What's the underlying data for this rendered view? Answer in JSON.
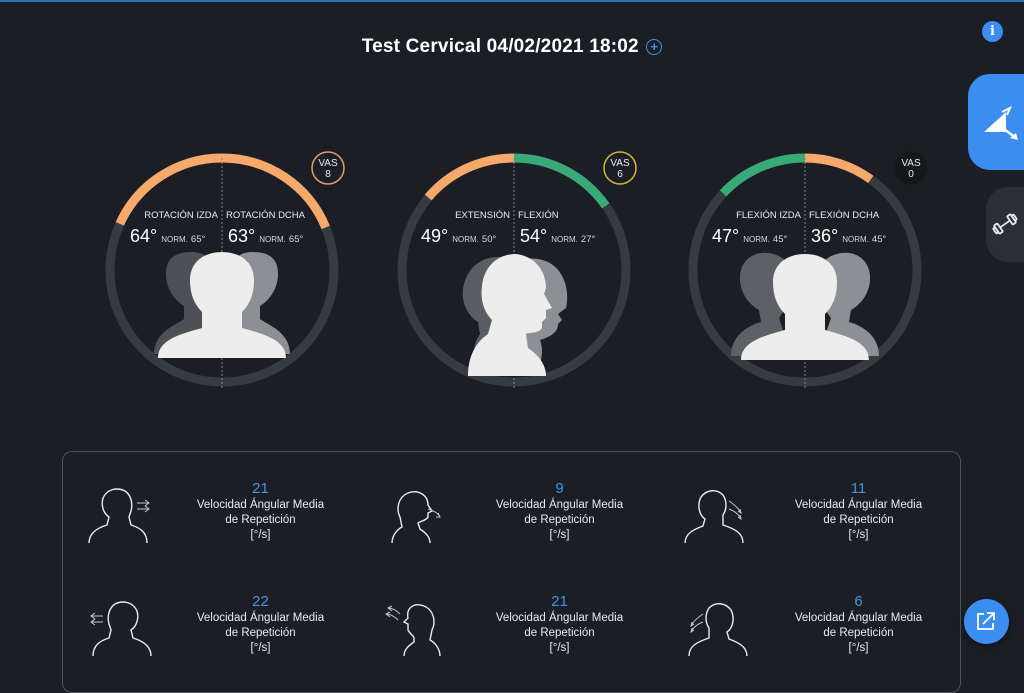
{
  "header": {
    "title": "Test Cervical 04/02/2021 18:02"
  },
  "icons": {
    "info": "info-icon",
    "add": "plus-circle-icon",
    "side_active": "angle-measure-icon",
    "side": "dumbbell-icon",
    "fab": "external-link-icon"
  },
  "gauges": [
    {
      "vas_label": "VAS",
      "vas_value": "8",
      "vas_color": "#e79a6f",
      "left_label": "ROTACIÓN IZDA",
      "right_label": "ROTACIÓN DCHA",
      "left_value": "64°",
      "left_norm_label": "NORM.",
      "left_norm_value": "65°",
      "right_value": "63°",
      "right_norm_label": "NORM.",
      "right_norm_value": "65°",
      "left_arc_color": "#f6a96a",
      "right_arc_color": "#f6a96a"
    },
    {
      "vas_label": "VAS",
      "vas_value": "6",
      "vas_color": "#d5b42d",
      "left_label": "EXTENSIÓN",
      "right_label": "FLEXIÓN",
      "left_value": "49°",
      "left_norm_label": "NORM.",
      "left_norm_value": "50°",
      "right_value": "54°",
      "right_norm_label": "NORM.",
      "right_norm_value": "27°",
      "left_arc_color": "#f6a96a",
      "right_arc_color": "#3aa978"
    },
    {
      "vas_label": "VAS",
      "vas_value": "0",
      "vas_color": "#151719",
      "left_label": "FLEXIÓN IZDA",
      "right_label": "FLEXIÓN DCHA",
      "left_value": "47°",
      "left_norm_label": "NORM.",
      "left_norm_value": "45°",
      "right_value": "36°",
      "right_norm_label": "NORM.",
      "right_norm_value": "45°",
      "left_arc_color": "#3aa978",
      "right_arc_color": "#f6a96a"
    }
  ],
  "metrics": [
    {
      "value": "21",
      "line1": "Velocidad Ángular Media",
      "line2": "de Repetición",
      "unit": "[°/s]",
      "icon": "head-rotation-right-icon"
    },
    {
      "value": "9",
      "line1": "Velocidad Ángular Media",
      "line2": "de Repetición",
      "unit": "[°/s]",
      "icon": "head-flexion-icon"
    },
    {
      "value": "11",
      "line1": "Velocidad Ángular Media",
      "line2": "de Repetición",
      "unit": "[°/s]",
      "icon": "head-lateral-flexion-right-icon"
    },
    {
      "value": "22",
      "line1": "Velocidad Ángular Media",
      "line2": "de Repetición",
      "unit": "[°/s]",
      "icon": "head-rotation-left-icon"
    },
    {
      "value": "21",
      "line1": "Velocidad Ángular Media",
      "line2": "de Repetición",
      "unit": "[°/s]",
      "icon": "head-extension-icon"
    },
    {
      "value": "6",
      "line1": "Velocidad Ángular Media",
      "line2": "de Repetición",
      "unit": "[°/s]",
      "icon": "head-lateral-flexion-left-icon"
    }
  ]
}
